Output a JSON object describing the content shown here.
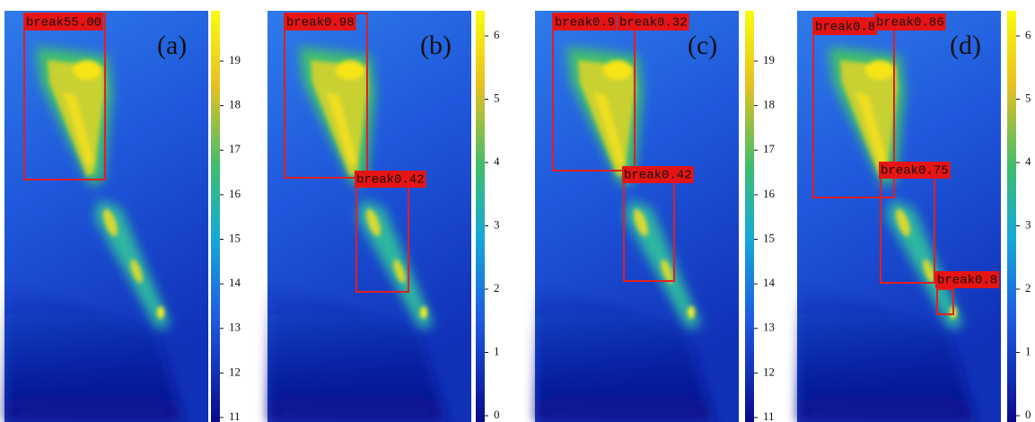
{
  "panels": [
    {
      "label": "(a)",
      "colorbar_ticks": [
        19,
        18,
        17,
        16,
        15,
        14,
        13,
        12,
        11
      ],
      "boxes": [
        {
          "label": "break55.00"
        }
      ]
    },
    {
      "label": "(b)",
      "colorbar_ticks": [
        6,
        5,
        4,
        3,
        2,
        1,
        0
      ],
      "boxes": [
        {
          "label": "break0.98"
        },
        {
          "label": "break0.42"
        }
      ]
    },
    {
      "label": "(c)",
      "colorbar_ticks": [
        19,
        18,
        17,
        16,
        15,
        14,
        13,
        12,
        11
      ],
      "boxes": [
        {
          "label": "break0.9"
        },
        {
          "label": "break0.32"
        },
        {
          "label": "break0.42"
        }
      ]
    },
    {
      "label": "(d)",
      "colorbar_ticks": [
        6,
        5,
        4,
        3,
        2,
        1,
        0
      ],
      "boxes": [
        {
          "label": "break0.8"
        },
        {
          "label": "break0.86"
        },
        {
          "label": "break0.75"
        },
        {
          "label": "break0.8"
        }
      ]
    }
  ]
}
